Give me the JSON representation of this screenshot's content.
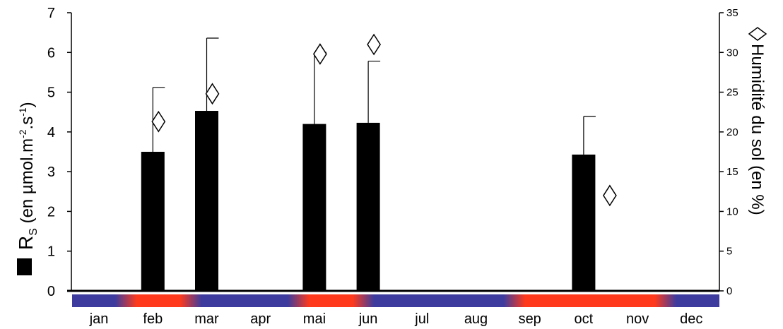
{
  "chart_data": {
    "type": "bar",
    "categories": [
      "jan",
      "feb",
      "mar",
      "apr",
      "mai",
      "jun",
      "jul",
      "aug",
      "sep",
      "oct",
      "nov",
      "dec"
    ],
    "series": [
      {
        "name": "R_S",
        "axis": "left",
        "values": [
          null,
          3.5,
          4.53,
          null,
          4.2,
          4.23,
          null,
          null,
          null,
          3.43,
          null,
          null
        ],
        "error_plus": [
          null,
          1.62,
          1.83,
          null,
          1.8,
          1.55,
          null,
          null,
          null,
          0.96,
          null,
          null
        ],
        "color": "#000000"
      },
      {
        "name": "Humidité du sol",
        "axis": "right",
        "marker": "diamond",
        "values": [
          null,
          21.3,
          24.8,
          null,
          29.8,
          31.0,
          null,
          null,
          null,
          12.0,
          null,
          null
        ]
      }
    ],
    "ylabel": "R_S (en µmol.m⁻².s⁻¹)",
    "ylabel_parts": {
      "main": "R",
      "sub": "S",
      "rest1": " (en µmol.m",
      "sup1": "-2",
      "rest2": ".s",
      "sup2": "-1",
      "rest3": ")"
    },
    "y2label": "Humidité du sol (en %)",
    "ylim": [
      0,
      7
    ],
    "y2lim": [
      0,
      35
    ],
    "yticks": [
      "0",
      "1",
      "2",
      "3",
      "4",
      "5",
      "6",
      "7"
    ],
    "y2ticks": [
      "0",
      "5",
      "10",
      "15",
      "20",
      "25",
      "30",
      "35"
    ],
    "season_band_colors": [
      "#3d3b9e",
      "#ff3a1c"
    ],
    "season_band_stops": [
      0,
      0,
      0,
      1,
      1,
      1,
      0,
      0,
      0,
      0,
      0,
      1,
      1,
      1,
      0,
      0,
      0,
      0,
      0,
      0,
      0,
      1,
      1,
      1,
      1,
      1,
      1,
      1,
      0,
      0,
      0
    ],
    "grid": false,
    "legend": "none"
  }
}
